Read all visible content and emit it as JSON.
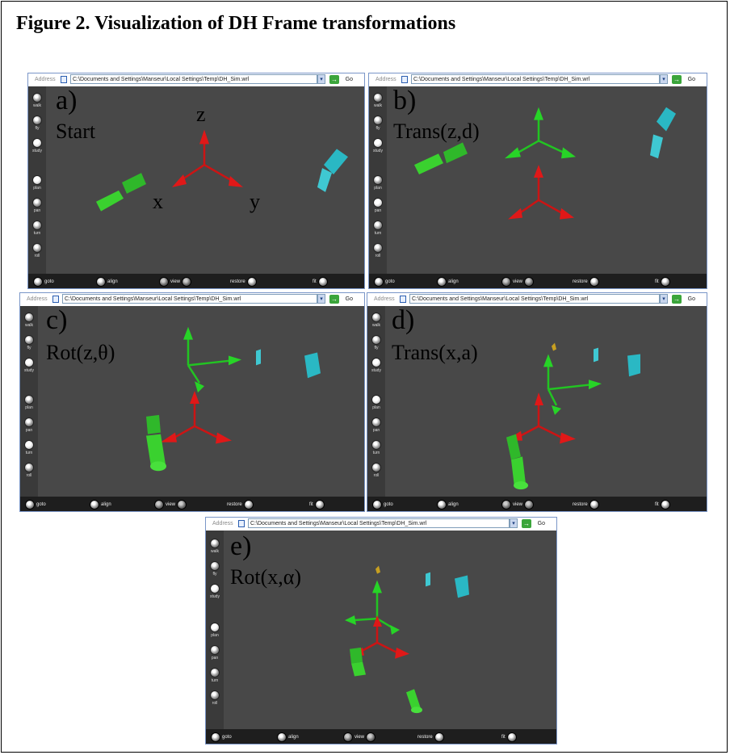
{
  "figure_title": "Figure 2.  Visualization of DH Frame transformations",
  "address_label": "Address",
  "address_path": "C:\\Documents and Settings\\Manseur\\Local Settings\\Temp\\DH_Sim.wrl",
  "go_label": "Go",
  "sidebar_tools": [
    "walk",
    "fly",
    "study",
    "plan",
    "pan",
    "turn",
    "roll"
  ],
  "bottom_controls": {
    "goto": "goto",
    "align": "align",
    "view": "view",
    "restore": "restore",
    "fit": "fit"
  },
  "panels": [
    {
      "letter": "a)",
      "caption": "Start",
      "axis_labels": {
        "z": "z",
        "x": "x",
        "y": "y"
      }
    },
    {
      "letter": "b)",
      "caption": "Trans(z,d)"
    },
    {
      "letter": "c)",
      "caption": "Rot(z,θ)"
    },
    {
      "letter": "d)",
      "caption": "Trans(x,a)"
    },
    {
      "letter": "e)",
      "caption": "Rot(x,α)"
    }
  ],
  "colors": {
    "viewport_bg": "#484848",
    "axis_red": "#cc1414",
    "axis_green": "#22c422",
    "link_green": "#3ad12f",
    "block_cyan": "#2ab8c4",
    "window_border": "#7a96c8"
  }
}
